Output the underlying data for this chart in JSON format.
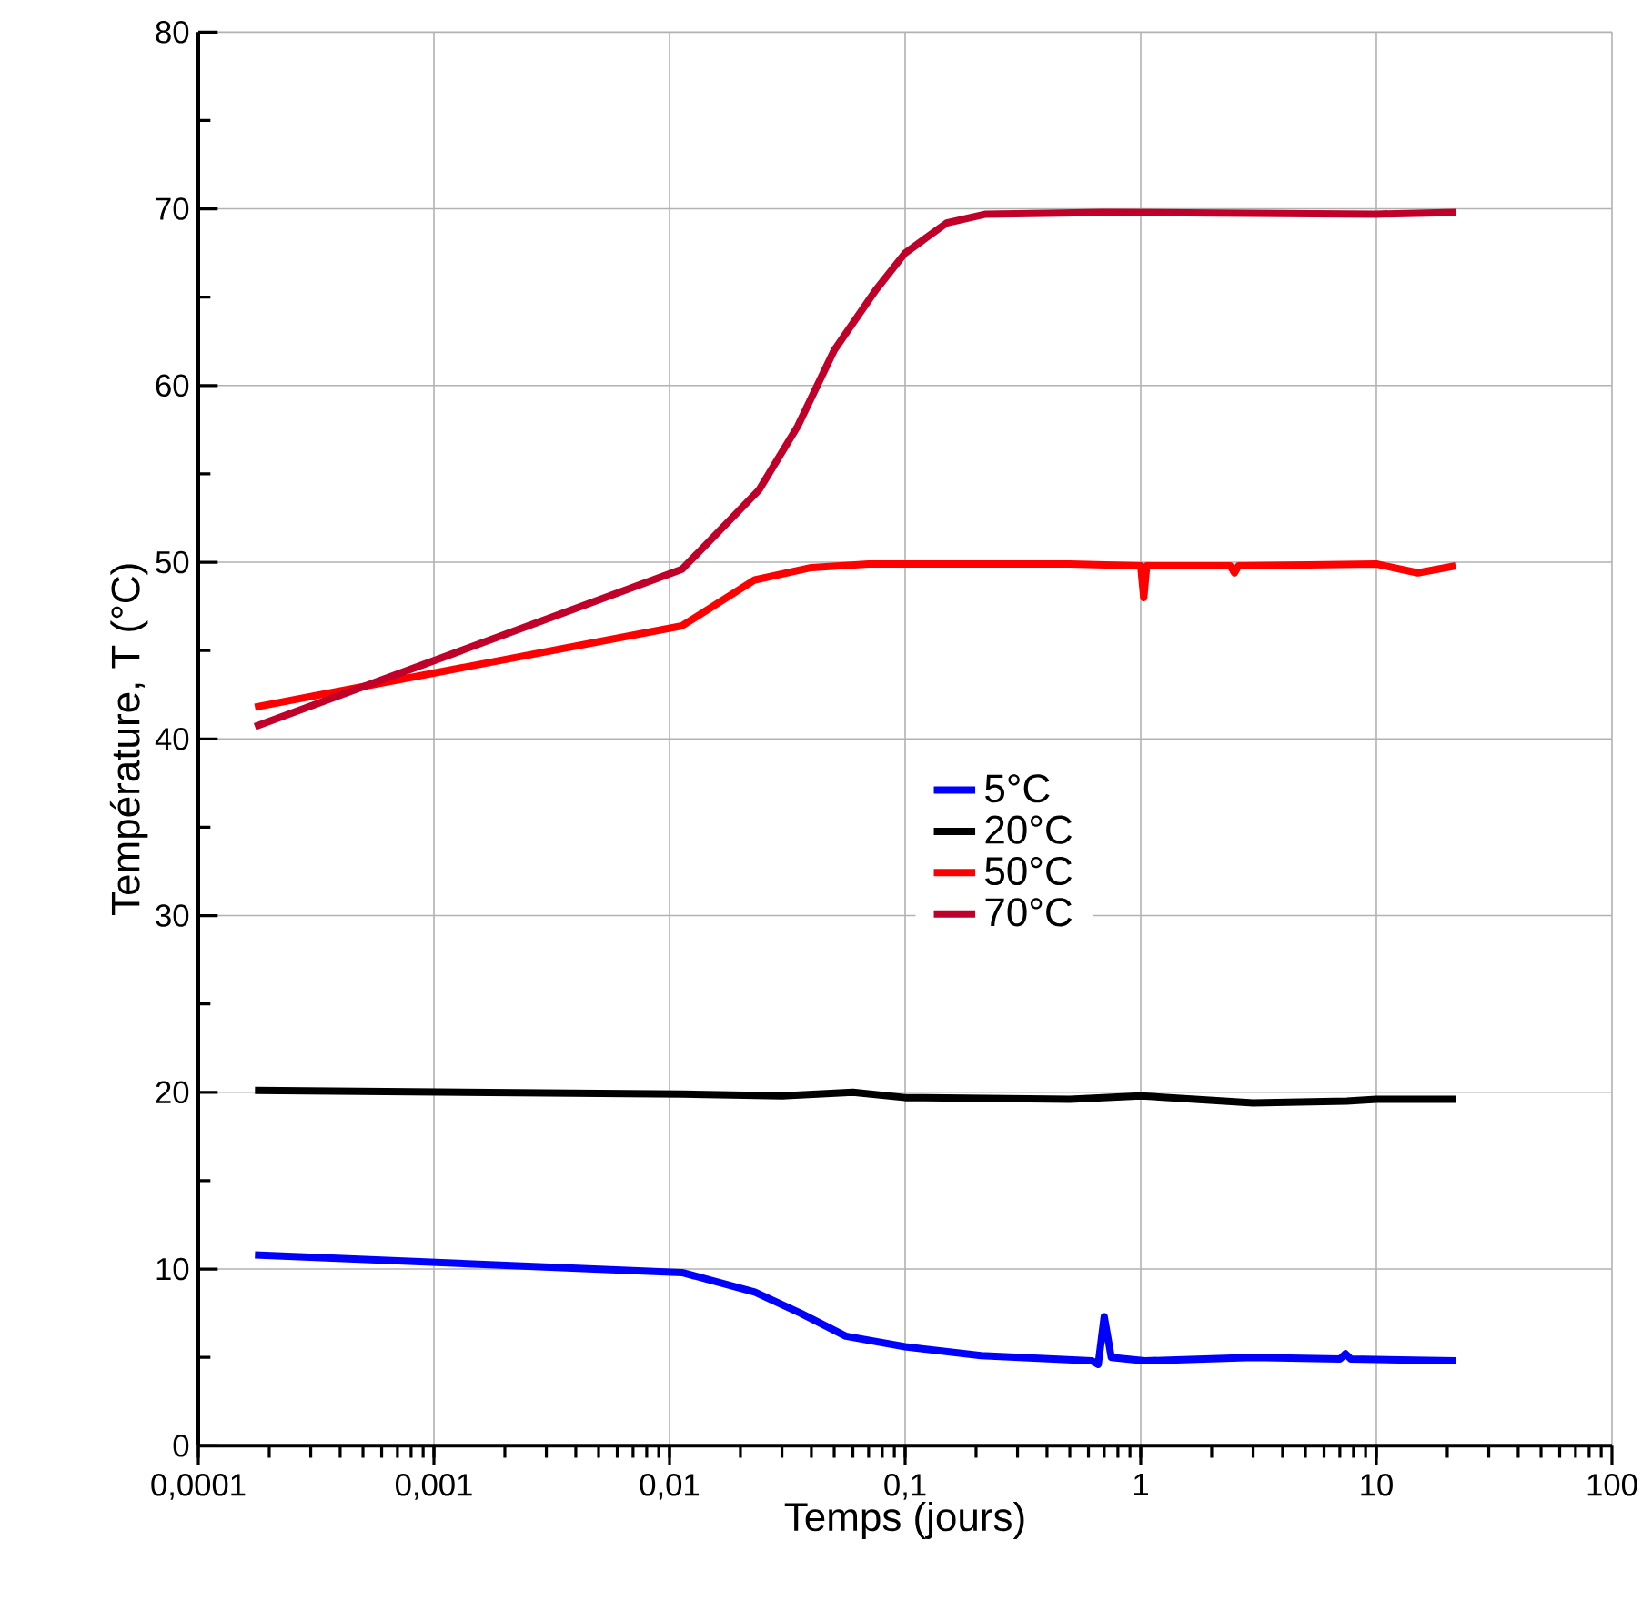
{
  "chart_data": {
    "type": "line",
    "xlabel": "Temps (jours)",
    "ylabel": "Température, T (°C)",
    "log": "x",
    "xlim": [
      0.0001,
      100
    ],
    "xticks": [
      {
        "value": 0.0001,
        "label": "0,0001"
      },
      {
        "value": 0.001,
        "label": "0,001"
      },
      {
        "value": 0.01,
        "label": "0,01"
      },
      {
        "value": 0.1,
        "label": "0,1"
      },
      1,
      10,
      100
    ],
    "ylim": [
      0,
      80
    ],
    "yticks": [
      0,
      10,
      20,
      30,
      40,
      50,
      60,
      70,
      80
    ],
    "grid": true,
    "legend": "center",
    "marker": "none",
    "line_style": "solid",
    "series": [
      {
        "name": "5°C",
        "color": "#0000ff",
        "x": [
          0.000174,
          0.0113,
          0.023,
          0.036,
          0.056,
          0.1,
          0.21,
          0.62,
          0.66,
          0.7,
          0.75,
          1.04,
          3.0,
          7.0,
          7.4,
          7.8,
          21.7
        ],
        "values": [
          10.8,
          9.8,
          8.7,
          7.5,
          6.2,
          5.6,
          5.1,
          4.8,
          4.6,
          7.3,
          5.0,
          4.8,
          5.0,
          4.9,
          5.2,
          4.9,
          4.8
        ]
      },
      {
        "name": "20°C",
        "color": "#000000",
        "x": [
          0.000174,
          0.0113,
          0.03,
          0.06,
          0.1,
          0.5,
          1.0,
          3.0,
          7.5,
          10,
          21.7
        ],
        "values": [
          20.1,
          19.9,
          19.8,
          20.0,
          19.7,
          19.6,
          19.8,
          19.4,
          19.5,
          19.6,
          19.6
        ]
      },
      {
        "name": "50°C",
        "color": "#ff0000",
        "x": [
          0.000174,
          0.0113,
          0.023,
          0.04,
          0.07,
          0.5,
          1.0,
          1.03,
          1.06,
          2.4,
          2.5,
          2.6,
          10,
          15,
          21.7
        ],
        "values": [
          41.8,
          46.4,
          49.0,
          49.7,
          49.9,
          49.9,
          49.8,
          48.0,
          49.8,
          49.8,
          49.4,
          49.8,
          49.9,
          49.4,
          49.8
        ]
      },
      {
        "name": "70°C",
        "color": "#c00028",
        "x": [
          0.000174,
          0.0113,
          0.024,
          0.035,
          0.05,
          0.075,
          0.1,
          0.15,
          0.22,
          0.7,
          10,
          21.7
        ],
        "values": [
          40.7,
          49.6,
          54.1,
          57.7,
          62.0,
          65.4,
          67.5,
          69.2,
          69.7,
          69.8,
          69.7,
          69.8
        ]
      }
    ]
  }
}
